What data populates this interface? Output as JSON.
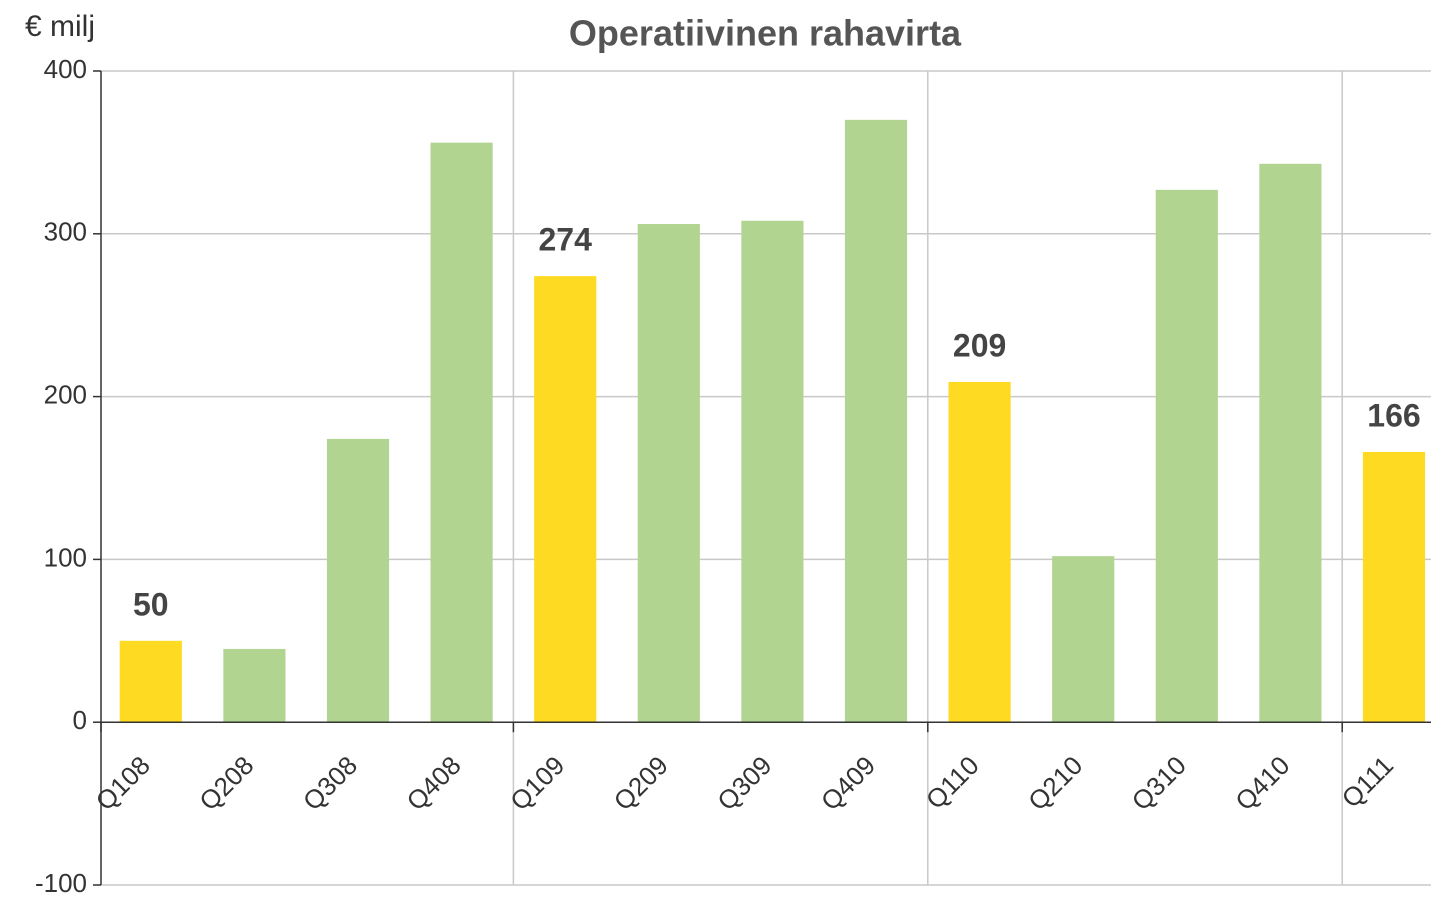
{
  "chart_data": {
    "type": "bar",
    "title": "Operatiivinen rahavirta",
    "ylabel": "€ milj",
    "categories": [
      "Q108",
      "Q208",
      "Q308",
      "Q408",
      "Q109",
      "Q209",
      "Q309",
      "Q409",
      "Q110",
      "Q210",
      "Q310",
      "Q410",
      "Q111"
    ],
    "values": [
      50,
      45,
      174,
      356,
      274,
      306,
      308,
      370,
      209,
      102,
      327,
      343,
      166
    ],
    "value_labels": [
      "50",
      null,
      null,
      null,
      "274",
      null,
      null,
      null,
      "209",
      null,
      null,
      null,
      "166"
    ],
    "colors": [
      "#ffda22",
      "#b2d491",
      "#b2d491",
      "#b2d491",
      "#ffda22",
      "#b2d491",
      "#b2d491",
      "#b2d491",
      "#ffda22",
      "#b2d491",
      "#b2d491",
      "#b2d491",
      "#ffda22"
    ],
    "ylim": [
      -100,
      400
    ],
    "yticks": [
      -100,
      0,
      100,
      200,
      300,
      400
    ],
    "grid": true
  }
}
